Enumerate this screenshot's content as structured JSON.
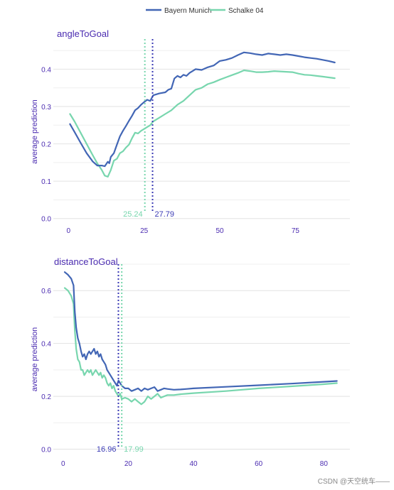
{
  "watermark": "CSDN @天空统车——",
  "chart_data": [
    {
      "type": "line",
      "title": "angleToGoal",
      "xlabel": "",
      "ylabel": "average prediction",
      "xlim": [
        -5,
        93
      ],
      "ylim": [
        -0.01,
        0.475
      ],
      "xticks": [
        0,
        25,
        50,
        75
      ],
      "yticks": [
        0.0,
        0.1,
        0.2,
        0.3,
        0.4
      ],
      "yticklabels": [
        "0.0",
        "0.1",
        "0.2",
        "0.3",
        "0.4"
      ],
      "grid": true,
      "legend": "top-center",
      "series": [
        {
          "name": "Bayern Munich",
          "color": "#4266b5",
          "x": [
            0.5,
            2,
            4,
            6,
            8,
            9.5,
            11,
            12,
            13,
            13.5,
            14,
            15,
            16,
            17,
            18,
            19,
            20,
            21,
            22,
            23,
            24,
            25,
            26,
            27,
            28,
            30,
            32,
            33,
            34,
            35,
            36,
            37,
            38,
            39,
            40,
            42,
            44,
            46,
            48,
            50,
            52,
            54,
            56,
            58,
            60,
            62,
            64,
            66,
            68,
            70,
            72,
            74,
            76,
            78,
            80,
            82,
            84,
            86,
            88
          ],
          "y": [
            0.253,
            0.232,
            0.203,
            0.175,
            0.153,
            0.142,
            0.142,
            0.14,
            0.152,
            0.148,
            0.165,
            0.175,
            0.198,
            0.22,
            0.235,
            0.248,
            0.262,
            0.275,
            0.29,
            0.296,
            0.305,
            0.312,
            0.318,
            0.315,
            0.33,
            0.335,
            0.338,
            0.345,
            0.348,
            0.375,
            0.382,
            0.378,
            0.385,
            0.382,
            0.39,
            0.4,
            0.398,
            0.405,
            0.41,
            0.422,
            0.425,
            0.43,
            0.438,
            0.445,
            0.443,
            0.44,
            0.438,
            0.442,
            0.44,
            0.438,
            0.44,
            0.438,
            0.435,
            0.432,
            0.43,
            0.428,
            0.425,
            0.422,
            0.418
          ]
        },
        {
          "name": "Schalke 04",
          "color": "#78d6ae",
          "x": [
            0.5,
            2,
            4,
            6,
            8,
            9.5,
            11,
            12,
            13,
            14,
            15,
            16,
            17,
            18,
            19,
            20,
            21,
            22,
            23,
            24,
            25,
            26,
            27,
            28,
            30,
            32,
            34,
            36,
            38,
            40,
            42,
            44,
            46,
            48,
            50,
            52,
            54,
            56,
            58,
            60,
            62,
            64,
            66,
            68,
            70,
            72,
            74,
            76,
            78,
            80,
            82,
            84,
            86,
            88
          ],
          "y": [
            0.28,
            0.26,
            0.23,
            0.2,
            0.17,
            0.148,
            0.13,
            0.115,
            0.112,
            0.13,
            0.155,
            0.16,
            0.175,
            0.18,
            0.19,
            0.198,
            0.215,
            0.23,
            0.228,
            0.235,
            0.24,
            0.245,
            0.25,
            0.26,
            0.27,
            0.28,
            0.29,
            0.305,
            0.315,
            0.33,
            0.345,
            0.35,
            0.36,
            0.365,
            0.372,
            0.378,
            0.384,
            0.39,
            0.397,
            0.395,
            0.392,
            0.392,
            0.393,
            0.395,
            0.394,
            0.393,
            0.392,
            0.388,
            0.385,
            0.384,
            0.382,
            0.38,
            0.378,
            0.376
          ]
        }
      ],
      "reference_lines": [
        {
          "series": "Schalke 04",
          "value": 25.24,
          "label": "25.24",
          "color": "#78d6ae"
        },
        {
          "series": "Bayern Munich",
          "value": 27.79,
          "label": "27.79",
          "color": "#3b3bb5"
        }
      ]
    },
    {
      "type": "line",
      "title": "distanceToGoal",
      "xlabel": "",
      "ylabel": "average prediction",
      "xlim": [
        -3,
        88
      ],
      "ylim": [
        -0.02,
        0.7
      ],
      "xticks": [
        0,
        20,
        40,
        60,
        80
      ],
      "yticks": [
        0.0,
        0.2,
        0.4,
        0.6
      ],
      "yticklabels": [
        "0.0",
        "0.2",
        "0.4",
        "0.6"
      ],
      "grid": true,
      "series": [
        {
          "name": "Bayern Munich",
          "color": "#4266b5",
          "x": [
            0.5,
            1.5,
            2.5,
            3.2,
            3.6,
            4,
            4.5,
            5,
            5.5,
            6,
            6.5,
            7,
            7.5,
            8,
            8.5,
            9,
            9.5,
            10,
            10.5,
            11,
            11.5,
            12,
            12.5,
            13,
            13.5,
            14,
            14.5,
            15,
            15.5,
            16,
            16.5,
            17,
            17.5,
            18,
            19,
            20,
            21,
            22,
            23,
            24,
            25,
            26,
            27,
            28,
            29,
            30,
            31,
            32,
            34,
            36,
            38,
            40,
            50,
            60,
            70,
            80,
            84
          ],
          "y": [
            0.67,
            0.66,
            0.645,
            0.62,
            0.52,
            0.46,
            0.42,
            0.4,
            0.37,
            0.35,
            0.36,
            0.34,
            0.36,
            0.37,
            0.36,
            0.37,
            0.38,
            0.36,
            0.37,
            0.35,
            0.36,
            0.34,
            0.33,
            0.32,
            0.3,
            0.29,
            0.28,
            0.27,
            0.26,
            0.25,
            0.24,
            0.26,
            0.25,
            0.24,
            0.23,
            0.23,
            0.22,
            0.225,
            0.23,
            0.22,
            0.23,
            0.225,
            0.23,
            0.235,
            0.22,
            0.225,
            0.23,
            0.228,
            0.225,
            0.226,
            0.228,
            0.23,
            0.236,
            0.242,
            0.248,
            0.255,
            0.258
          ]
        },
        {
          "name": "Schalke 04",
          "color": "#78d6ae",
          "x": [
            0.5,
            1.5,
            2.5,
            3.2,
            3.6,
            4,
            4.5,
            5,
            5.5,
            6,
            6.5,
            7,
            7.5,
            8,
            8.5,
            9,
            9.5,
            10,
            10.5,
            11,
            11.5,
            12,
            12.5,
            13,
            13.5,
            14,
            14.5,
            15,
            15.5,
            16,
            16.5,
            17,
            17.5,
            18,
            19,
            20,
            21,
            22,
            23,
            24,
            25,
            26,
            27,
            28,
            29,
            30,
            31,
            32,
            34,
            36,
            38,
            40,
            50,
            60,
            70,
            80,
            84
          ],
          "y": [
            0.61,
            0.6,
            0.58,
            0.55,
            0.45,
            0.38,
            0.34,
            0.33,
            0.3,
            0.3,
            0.28,
            0.29,
            0.3,
            0.29,
            0.3,
            0.28,
            0.29,
            0.3,
            0.29,
            0.28,
            0.29,
            0.27,
            0.28,
            0.27,
            0.25,
            0.24,
            0.25,
            0.23,
            0.24,
            0.22,
            0.21,
            0.2,
            0.21,
            0.19,
            0.195,
            0.19,
            0.18,
            0.19,
            0.18,
            0.17,
            0.18,
            0.2,
            0.19,
            0.2,
            0.21,
            0.195,
            0.2,
            0.205,
            0.205,
            0.208,
            0.21,
            0.212,
            0.22,
            0.23,
            0.238,
            0.246,
            0.25
          ]
        }
      ],
      "reference_lines": [
        {
          "series": "Bayern Munich",
          "value": 16.96,
          "label": "16.96",
          "color": "#3b3bb5"
        },
        {
          "series": "Schalke 04",
          "value": 17.99,
          "label": "17.99",
          "color": "#78d6ae"
        }
      ]
    }
  ]
}
